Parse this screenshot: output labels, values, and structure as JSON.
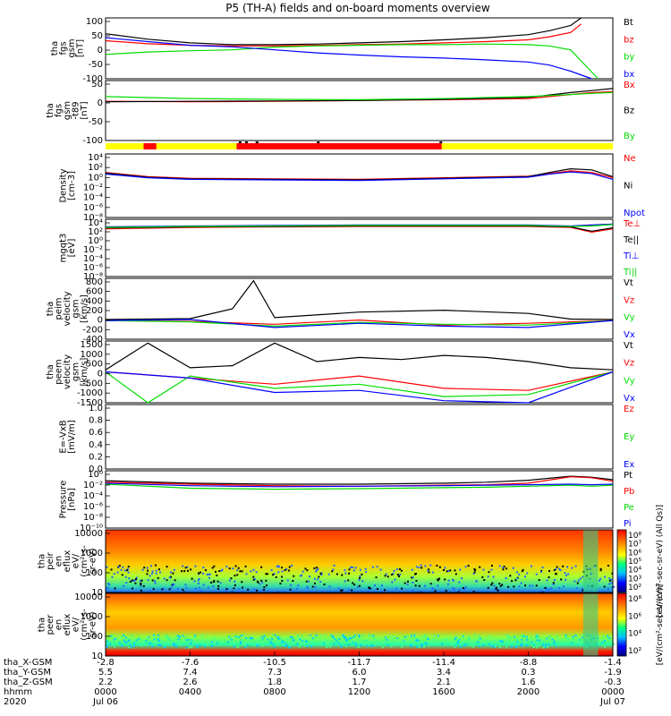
{
  "title": "P5 (TH-A) fields and on-board moments overview",
  "colors": {
    "black": "#000000",
    "red": "#ff0000",
    "green": "#00dd00",
    "blue": "#0000ff",
    "yellow": "#ffff00"
  },
  "chart_data": [
    {
      "type": "line",
      "panel": "fgs",
      "ylabel": [
        "tha",
        "fgs",
        "gsm",
        "[nT]"
      ],
      "ylim": [
        -100,
        100
      ],
      "yticks": [
        "100",
        "50",
        "0",
        "-50",
        "-100"
      ],
      "series": [
        {
          "name": "Bt",
          "color": "black",
          "x": [
            0,
            2,
            4,
            6,
            8,
            10,
            12,
            14,
            16,
            18,
            20,
            21,
            22,
            22.5
          ],
          "values": [
            48,
            30,
            18,
            12,
            12,
            14,
            18,
            22,
            28,
            35,
            45,
            58,
            75,
            100
          ]
        },
        {
          "name": "bz",
          "color": "red",
          "x": [
            0,
            2,
            4,
            6,
            8,
            10,
            12,
            14,
            16,
            18,
            20,
            21,
            22,
            22.5
          ],
          "values": [
            25,
            15,
            10,
            8,
            8,
            10,
            12,
            14,
            18,
            22,
            28,
            38,
            52,
            80
          ]
        },
        {
          "name": "by",
          "color": "green",
          "x": [
            0,
            2,
            4,
            6,
            8,
            10,
            12,
            14,
            16,
            18,
            20,
            21,
            22,
            23.3
          ],
          "values": [
            -20,
            -12,
            -8,
            -5,
            4,
            8,
            10,
            12,
            12,
            14,
            12,
            8,
            -5,
            -100
          ]
        },
        {
          "name": "bx",
          "color": "blue",
          "x": [
            0,
            2,
            4,
            6,
            8,
            10,
            12,
            14,
            16,
            18,
            20,
            21,
            22,
            23
          ],
          "values": [
            35,
            22,
            10,
            5,
            -5,
            -15,
            -22,
            -28,
            -32,
            -38,
            -45,
            -55,
            -75,
            -100
          ]
        }
      ]
    },
    {
      "type": "line",
      "panel": "fgs-t89",
      "ylabel": [
        "tha",
        "fgs",
        "gsm",
        "-t89",
        "[nT]"
      ],
      "ylim": [
        -100,
        50
      ],
      "yticks": [
        "50",
        "0",
        "-50",
        "-100"
      ],
      "series": [
        {
          "name": "Bx",
          "color": "red",
          "x": [
            0,
            4,
            8,
            12,
            16,
            20,
            22,
            23,
            24
          ],
          "values": [
            -2,
            -3,
            -2,
            0,
            2,
            5,
            15,
            20,
            22
          ]
        },
        {
          "name": "Bz",
          "color": "black",
          "x": [
            0,
            4,
            8,
            12,
            16,
            20,
            22,
            23,
            24
          ],
          "values": [
            -3,
            -2,
            -1,
            0,
            3,
            8,
            20,
            25,
            30
          ]
        },
        {
          "name": "By",
          "color": "green",
          "x": [
            0,
            4,
            8,
            12,
            16,
            20,
            22,
            23,
            24
          ],
          "values": [
            10,
            5,
            3,
            2,
            5,
            10,
            15,
            18,
            20
          ]
        }
      ]
    },
    {
      "type": "line",
      "panel": "density",
      "ylabel": [
        "Density",
        "[cm-3]"
      ],
      "ylim_log": [
        -8,
        4
      ],
      "yticks": [
        "10⁴",
        "10²",
        "10⁰",
        "10⁻²",
        "10⁻⁴",
        "10⁻⁶",
        "10⁻⁸"
      ],
      "series": [
        {
          "name": "Ne",
          "color": "red",
          "x": [
            0,
            2,
            4,
            8,
            12,
            16,
            20,
            21,
            22,
            23,
            24
          ],
          "values": [
            0.5,
            -0.3,
            -0.6,
            -0.7,
            -0.8,
            -0.5,
            -0.2,
            0.3,
            0.8,
            0.5,
            -0.5
          ]
        },
        {
          "name": "Ni",
          "color": "black",
          "x": [
            0,
            2,
            4,
            8,
            12,
            16,
            20,
            21,
            22,
            23,
            24
          ],
          "values": [
            0.4,
            -0.4,
            -0.7,
            -0.8,
            -0.9,
            -0.6,
            -0.3,
            0.5,
            1.2,
            1.0,
            -0.3
          ]
        },
        {
          "name": "Npot",
          "color": "blue",
          "x": [
            0,
            2,
            4,
            8,
            12,
            16,
            20,
            21,
            22,
            23,
            24
          ],
          "values": [
            0.2,
            -0.5,
            -0.8,
            -0.9,
            -1.0,
            -0.7,
            -0.4,
            0.2,
            0.6,
            0.3,
            -0.8
          ]
        }
      ]
    },
    {
      "type": "line",
      "panel": "temperature",
      "ylabel": [
        "mgqt3",
        "[eV]"
      ],
      "ylim_log": [
        -8,
        4
      ],
      "yticks": [
        "10⁴",
        "10²",
        "10⁰",
        "10⁻²",
        "10⁻⁴",
        "10⁻⁶",
        "10⁻⁸"
      ],
      "series": [
        {
          "name": "Te⊥",
          "color": "red",
          "x": [
            0,
            4,
            8,
            12,
            16,
            20,
            22,
            23,
            24
          ],
          "values": [
            2.0,
            2.3,
            2.4,
            2.5,
            2.5,
            2.5,
            2.3,
            1.3,
            2.0
          ]
        },
        {
          "name": "Te||",
          "color": "black",
          "x": [
            0,
            4,
            8,
            12,
            16,
            20,
            22,
            23,
            24
          ],
          "values": [
            2.2,
            2.4,
            2.5,
            2.6,
            2.6,
            2.6,
            2.4,
            1.5,
            2.2
          ]
        },
        {
          "name": "Ti⊥",
          "color": "blue",
          "x": [
            0,
            4,
            8,
            12,
            16,
            20,
            22,
            23,
            24
          ],
          "values": [
            2.4,
            2.6,
            2.7,
            2.8,
            2.8,
            2.8,
            2.6,
            2.8,
            3.0
          ]
        },
        {
          "name": "Ti||",
          "color": "green",
          "x": [
            0,
            4,
            8,
            12,
            16,
            20,
            22,
            23,
            24
          ],
          "values": [
            2.3,
            2.5,
            2.6,
            2.7,
            2.7,
            2.7,
            2.5,
            2.6,
            2.9
          ]
        }
      ]
    },
    {
      "type": "line",
      "panel": "peim-velocity",
      "ylabel": [
        "tha",
        "peim",
        "velocity",
        "gsm",
        "[km/s]"
      ],
      "ylim": [
        -400,
        900
      ],
      "yticks": [
        "800",
        "600",
        "400",
        "200",
        "0",
        "-200",
        "-400"
      ],
      "series": [
        {
          "name": "Vt",
          "color": "black",
          "x": [
            0,
            4,
            6,
            7,
            8,
            12,
            16,
            20,
            22,
            24
          ],
          "values": [
            20,
            40,
            250,
            850,
            60,
            180,
            220,
            150,
            30,
            20
          ]
        },
        {
          "name": "Vz",
          "color": "red",
          "x": [
            0,
            4,
            8,
            12,
            16,
            20,
            24
          ],
          "values": [
            0,
            -20,
            -80,
            10,
            -100,
            -60,
            0
          ]
        },
        {
          "name": "Vy",
          "color": "green",
          "x": [
            0,
            4,
            8,
            12,
            16,
            20,
            24
          ],
          "values": [
            0,
            -30,
            -120,
            -40,
            -80,
            -100,
            0
          ]
        },
        {
          "name": "Vx",
          "color": "blue",
          "x": [
            0,
            4,
            8,
            12,
            16,
            20,
            24
          ],
          "values": [
            0,
            20,
            -150,
            -60,
            -120,
            -150,
            0
          ]
        }
      ]
    },
    {
      "type": "line",
      "panel": "peem-velocity",
      "ylabel": [
        "tha",
        "peem",
        "velocity",
        "gsm",
        "[km/s]"
      ],
      "ylim": [
        -1500,
        1500
      ],
      "yticks": [
        "1500",
        "1000",
        "500",
        "0",
        "-500",
        "-1000",
        "-1500"
      ],
      "series": [
        {
          "name": "Vt",
          "color": "black",
          "x": [
            0,
            2,
            4,
            6,
            8,
            10,
            12,
            14,
            16,
            18,
            20,
            22,
            24
          ],
          "values": [
            100,
            1400,
            200,
            300,
            1400,
            500,
            700,
            600,
            800,
            700,
            500,
            200,
            100
          ]
        },
        {
          "name": "Vz",
          "color": "red",
          "x": [
            0,
            4,
            8,
            12,
            16,
            20,
            24
          ],
          "values": [
            0,
            -300,
            -600,
            -200,
            -800,
            -900,
            0
          ]
        },
        {
          "name": "Vy",
          "color": "green",
          "x": [
            0,
            2,
            4,
            8,
            12,
            16,
            20,
            24
          ],
          "values": [
            0,
            -1500,
            -200,
            -800,
            -600,
            -1200,
            -1100,
            0
          ]
        },
        {
          "name": "Vx",
          "color": "blue",
          "x": [
            0,
            4,
            8,
            12,
            16,
            20,
            24
          ],
          "values": [
            0,
            -300,
            -1000,
            -900,
            -1400,
            -1500,
            0
          ]
        }
      ]
    },
    {
      "type": "line",
      "panel": "efield",
      "ylabel": [
        "E=-VxB",
        "[mV/m]"
      ],
      "ylim": [
        0,
        1
      ],
      "yticks": [
        "1.0",
        "0.8",
        "0.6",
        "0.4",
        "0.2",
        "0.0"
      ],
      "series": [
        {
          "name": "Ez",
          "color": "red",
          "x": [],
          "values": []
        },
        {
          "name": "Ey",
          "color": "green",
          "x": [],
          "values": []
        },
        {
          "name": "Ex",
          "color": "blue",
          "x": [],
          "values": []
        }
      ]
    },
    {
      "type": "line",
      "panel": "pressure",
      "ylabel": [
        "Pressure",
        "[nPa]"
      ],
      "ylim_log": [
        -10,
        1.5
      ],
      "yticks": [
        "10⁰",
        "10⁻²",
        "10⁻⁴",
        "10⁻⁶",
        "10⁻⁸",
        "10⁻¹⁰"
      ],
      "series": [
        {
          "name": "Pt",
          "color": "black",
          "x": [
            0,
            4,
            8,
            12,
            16,
            18,
            20,
            22,
            23,
            24
          ],
          "values": [
            -0.5,
            -1.0,
            -1.2,
            -1.2,
            -1.0,
            -0.8,
            -0.4,
            0.4,
            0.2,
            -0.3
          ]
        },
        {
          "name": "Pb",
          "color": "red",
          "x": [
            0,
            4,
            8,
            12,
            16,
            18,
            20,
            22,
            23,
            24
          ],
          "values": [
            -0.8,
            -1.2,
            -1.5,
            -1.6,
            -1.4,
            -1.3,
            -1.0,
            0.3,
            0.1,
            -0.6
          ]
        },
        {
          "name": "Pe",
          "color": "green",
          "x": [
            0,
            4,
            8,
            12,
            16,
            18,
            20,
            22,
            23,
            24
          ],
          "values": [
            -1.2,
            -2.0,
            -2.2,
            -2.1,
            -1.9,
            -1.8,
            -1.6,
            -1.4,
            -1.6,
            -1.4
          ]
        },
        {
          "name": "Pi",
          "color": "blue",
          "x": [
            0,
            4,
            8,
            12,
            16,
            18,
            20,
            22,
            23,
            24
          ],
          "values": [
            -1.0,
            -1.5,
            -1.7,
            -1.6,
            -1.5,
            -1.4,
            -1.3,
            -1.2,
            -1.3,
            -1.2
          ]
        }
      ]
    },
    {
      "type": "heatmap",
      "panel": "peir",
      "ylabel": [
        "tha",
        "peir",
        "en",
        "eflux",
        "eV/",
        "(cm²-s-",
        "sr-eV)"
      ],
      "yticks": [
        "10000",
        "1000",
        "100",
        "10"
      ],
      "colorbar_ticks": [
        "10⁸",
        "10⁷",
        "10⁶",
        "10⁵",
        "10⁴",
        "10³",
        "10²"
      ],
      "colorbar_label": "[eV/(cm²-sec-sr-eV) (All Qs)]"
    },
    {
      "type": "heatmap",
      "panel": "peer",
      "ylabel": [
        "tha",
        "peer",
        "en",
        "eflux",
        "eV/",
        "(cm²-s-",
        "sr-eV)"
      ],
      "yticks": [
        "10000",
        "1000",
        "100",
        "10"
      ],
      "colorbar_ticks": [
        "10⁸",
        "10⁶",
        "10⁴",
        "10²"
      ],
      "colorbar_label": "[eV/(cm²-sec-sr-eV)]"
    }
  ],
  "x_axis": {
    "rows": [
      {
        "label": "tha_X-GSM",
        "values": [
          "-2.8",
          "-7.6",
          "-10.5",
          "-11.7",
          "-11.4",
          "-8.8",
          "-1.4"
        ]
      },
      {
        "label": "tha_Y-GSM",
        "values": [
          "5.5",
          "7.4",
          "7.3",
          "6.0",
          "3.4",
          "0.3",
          "-1.9"
        ]
      },
      {
        "label": "tha_Z-GSM",
        "values": [
          "2.2",
          "2.6",
          "1.8",
          "1.7",
          "2.1",
          "1.6",
          "-0.3"
        ]
      },
      {
        "label": "hhmm",
        "values": [
          "0000",
          "0400",
          "0800",
          "1200",
          "1600",
          "2000",
          "0000"
        ]
      },
      {
        "label": "2020",
        "values": [
          "Jul 06",
          "",
          "",
          "",
          "",
          "",
          "Jul 07"
        ]
      }
    ]
  },
  "mode_bar": {
    "colors": [
      "yellow",
      "red",
      "yellow"
    ],
    "red_intervals_hours": [
      [
        1.8,
        2.4
      ],
      [
        6.2,
        15.9
      ]
    ],
    "black_marks_hours": [
      6.3,
      6.6,
      7.1,
      10.0,
      15.8
    ]
  }
}
